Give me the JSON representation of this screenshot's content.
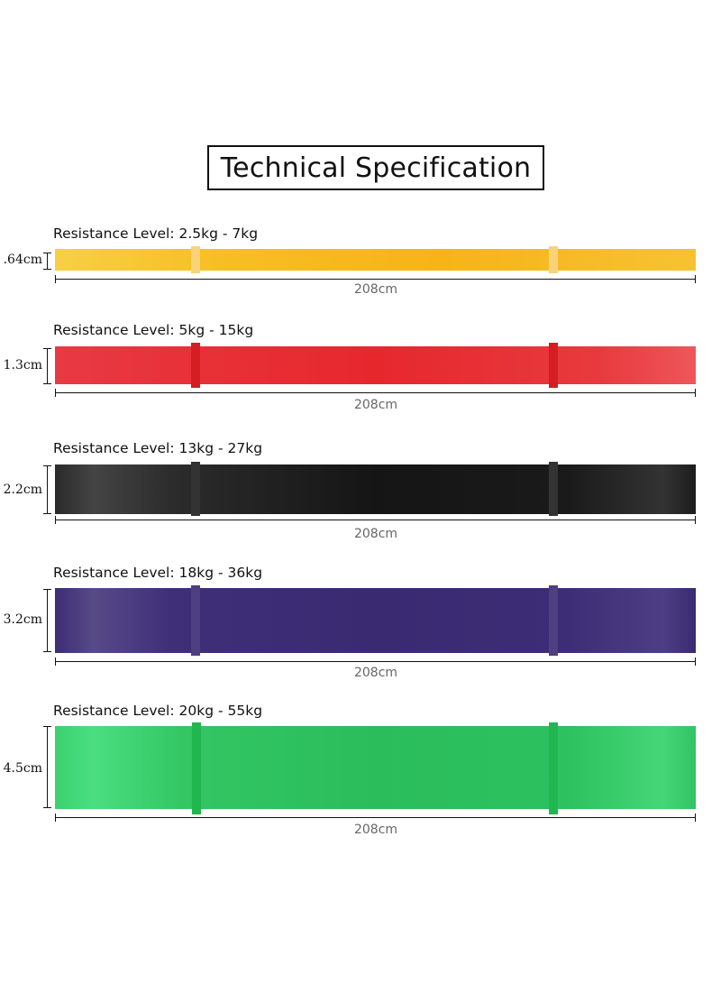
{
  "title": "Technical Specification",
  "bands": [
    {
      "color_name": "yellow",
      "color": "#f6b417",
      "resistance": "Resistance Level: 2.5kg - 7kg",
      "width": ".64cm",
      "length": "208cm"
    },
    {
      "color_name": "red",
      "color": "#e6282d",
      "resistance": "Resistance Level: 5kg - 15kg",
      "width": "1.3cm",
      "length": "208cm"
    },
    {
      "color_name": "black",
      "color": "#151515",
      "resistance": "Resistance Level: 13kg - 27kg",
      "width": "2.2cm",
      "length": "208cm"
    },
    {
      "color_name": "purple",
      "color": "#3a2a72",
      "resistance": "Resistance Level: 18kg - 36kg",
      "width": "3.2cm",
      "length": "208cm"
    },
    {
      "color_name": "green",
      "color": "#2bbd5c",
      "resistance": "Resistance Level: 20kg - 55kg",
      "width": "4.5cm",
      "length": "208cm"
    }
  ]
}
